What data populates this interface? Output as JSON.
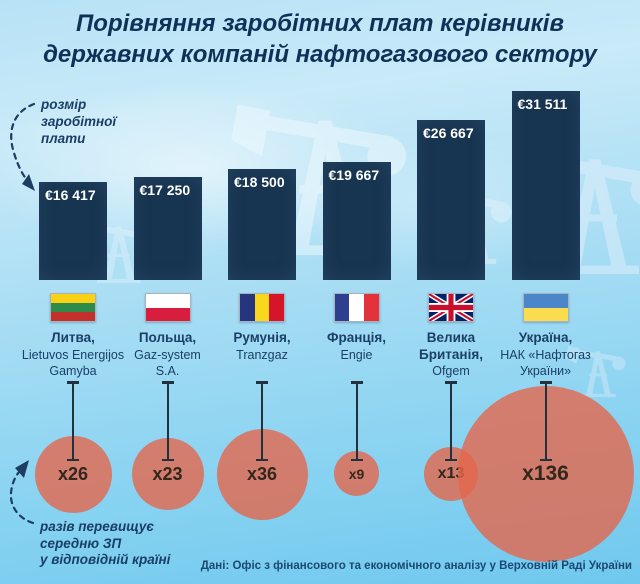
{
  "header": {
    "title_line1": "Порівняння заробітних плат керівників",
    "title_line2": "державних компаній нафтогазового сектору"
  },
  "annotations": {
    "salary_note": {
      "line1": "розмір",
      "line2": "заробітної",
      "line3": "плати"
    },
    "multiplier_note": {
      "line1": "разів перевищує",
      "line2": "середню ЗП",
      "line3": "у відповідній країні"
    }
  },
  "footer": {
    "source": "Дані: Офіс з фінансового та економічного аналізу у Верховній Раді України"
  },
  "colors": {
    "background_top": "#b7e2f6",
    "background_bottom": "#70c8ee",
    "bar": "#173450",
    "bar_value_text": "#ffffff",
    "title_text": "#0f3158",
    "note_text": "#1a3e66",
    "circle": "#e0674c",
    "multiplier_text": "#33271d",
    "stem": "#23313d"
  },
  "chart_data": {
    "type": "bar",
    "title": "Порівняння заробітних плат керівників державних компаній нафтогазового сектору",
    "categories": [
      "Литва, Lietuvos Energijos Gamyba",
      "Польща, Gaz-system S.A.",
      "Румунія, Tranzgaz",
      "Франція, Engie",
      "Велика Британія, Ofgem",
      "Україна, НАК «Нафтогаз України»"
    ],
    "series": [
      {
        "name": "розмір заробітної плати (EUR)",
        "values": [
          16417,
          17250,
          18500,
          19667,
          26667,
          31511
        ],
        "labels": [
          "€16 417",
          "€17 250",
          "€18 500",
          "€19 667",
          "€26 667",
          "€31 511"
        ]
      },
      {
        "name": "разів перевищує середню ЗП у відповідній країні",
        "values": [
          26,
          23,
          36,
          9,
          13,
          136
        ],
        "labels": [
          "x26",
          "x23",
          "x36",
          "x9",
          "x13",
          "x136"
        ]
      }
    ],
    "ylim": [
      0,
      31511
    ],
    "grid": false,
    "legend_position": "none",
    "source": "Дані: Офіс з фінансового та економічного аналізу у Верховній Раді України"
  },
  "columns": [
    {
      "value_label": "€16 417",
      "value_eur": 16417,
      "flag": {
        "name": "lithuania-flag",
        "type": "h",
        "colors": [
          "#fbd116",
          "#2e8b4a",
          "#c4302b"
        ]
      },
      "country_lines": [
        "Литва,"
      ],
      "company_lines": [
        "Lietuvos Energijos",
        "Gamyba"
      ],
      "multiplier_label": "x26",
      "multiplier": 26
    },
    {
      "value_label": "€17 250",
      "value_eur": 17250,
      "flag": {
        "name": "poland-flag",
        "type": "h",
        "colors": [
          "#ffffff",
          "#d81e3f"
        ]
      },
      "country_lines": [
        "Польща,"
      ],
      "company_lines": [
        "Gaz-system",
        "S.A."
      ],
      "multiplier_label": "x23",
      "multiplier": 23
    },
    {
      "value_label": "€18 500",
      "value_eur": 18500,
      "flag": {
        "name": "romania-flag",
        "type": "v",
        "colors": [
          "#27357f",
          "#f8d71c",
          "#d6152b"
        ]
      },
      "country_lines": [
        "Румунія,"
      ],
      "company_lines": [
        "Tranzgaz"
      ],
      "multiplier_label": "x36",
      "multiplier": 36
    },
    {
      "value_label": "€19 667",
      "value_eur": 19667,
      "flag": {
        "name": "france-flag",
        "type": "v",
        "colors": [
          "#2e3f90",
          "#ffffff",
          "#e4323c"
        ]
      },
      "country_lines": [
        "Франція,"
      ],
      "company_lines": [
        "Engie"
      ],
      "multiplier_label": "x9",
      "multiplier": 9
    },
    {
      "value_label": "€26 667",
      "value_eur": 26667,
      "flag": {
        "name": "uk-flag",
        "type": "uk",
        "colors": [
          "#012169",
          "#ffffff",
          "#c8102e"
        ]
      },
      "country_lines": [
        "Велика",
        "Британія,"
      ],
      "company_lines": [
        "Ofgem"
      ],
      "multiplier_label": "x13",
      "multiplier": 13
    },
    {
      "value_label": "€31 511",
      "value_eur": 31511,
      "flag": {
        "name": "ukraine-flag",
        "type": "h",
        "colors": [
          "#4b86c8",
          "#fcdc4f"
        ]
      },
      "country_lines": [
        "Україна,"
      ],
      "company_lines": [
        "НАК «Нафтогаз",
        "України»"
      ],
      "multiplier_label": "x136",
      "multiplier": 136
    }
  ]
}
